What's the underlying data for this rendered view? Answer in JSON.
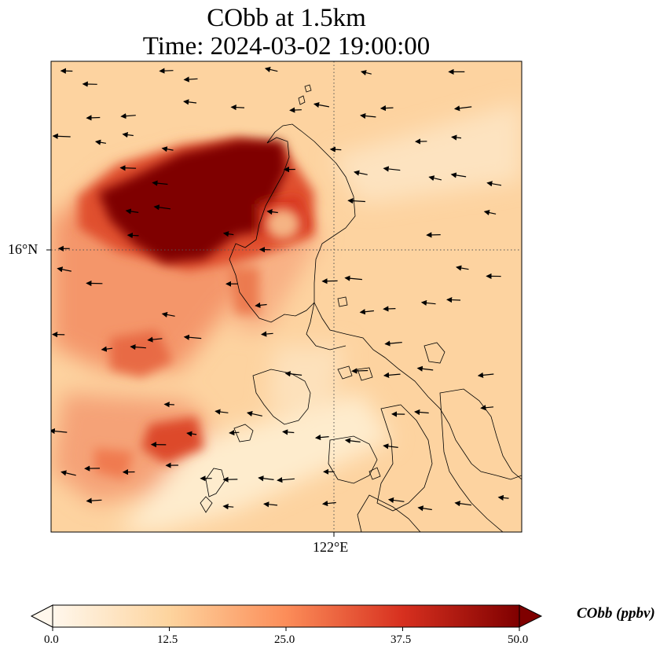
{
  "title_line1": "CObb at 1.5km",
  "title_line2": "Time: 2024-03-02 19:00:00",
  "lat_label": "16°N",
  "lon_label": "122°E",
  "colorbar": {
    "label": "CObb (ppbv)",
    "ticks": [
      "0.0",
      "12.5",
      "25.0",
      "37.5",
      "50.0"
    ],
    "min": 0,
    "max": 50,
    "extend": "both",
    "colormap": [
      "#fff7ec",
      "#fdd49e",
      "#fc8d59",
      "#d7301f",
      "#7f0000"
    ]
  },
  "overlays": {
    "coastline_color": "#000000",
    "gridline_style": "dotted",
    "wind_vectors": true
  }
}
